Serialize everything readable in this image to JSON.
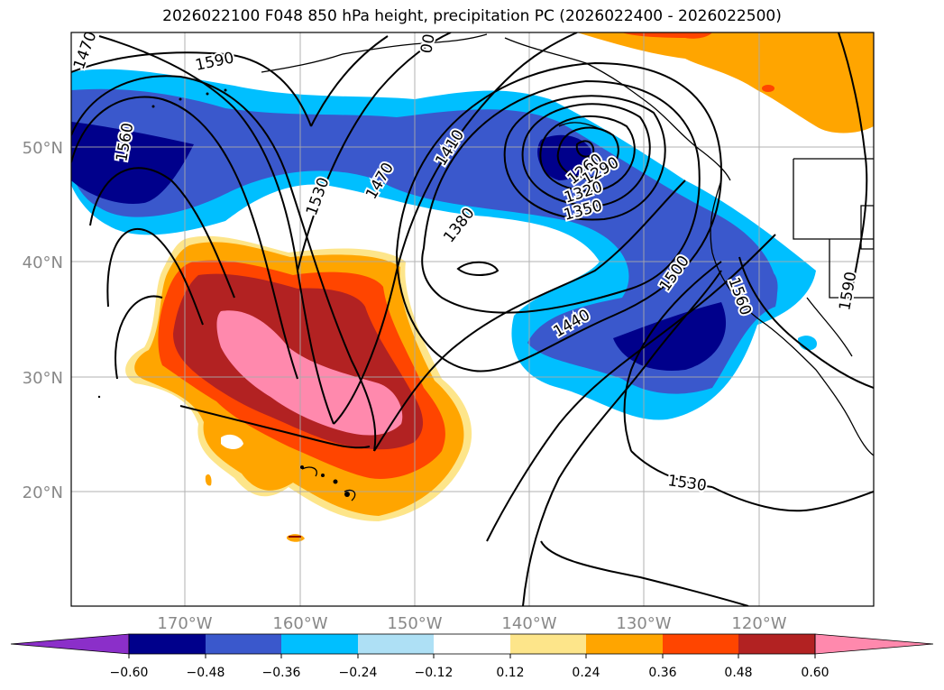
{
  "title": "2026022100 F048 850 hPa height, precipitation PC (2026022400 - 2026022500)",
  "map": {
    "lat_labels": [
      "50°N",
      "40°N",
      "30°N",
      "20°N"
    ],
    "lon_labels": [
      "170°W",
      "160°W",
      "150°W",
      "140°W",
      "130°W",
      "120°W"
    ],
    "contour_labels": [
      "1470",
      "1590",
      "1560",
      "1530",
      "1470",
      "1410",
      "1380",
      "1260",
      "1290",
      "1320",
      "1350",
      "1440",
      "1500",
      "1560",
      "1590",
      "1530",
      "00"
    ]
  },
  "colorbar": {
    "ticks": [
      "−0.60",
      "−0.48",
      "−0.36",
      "−0.24",
      "−0.12",
      "0.12",
      "0.24",
      "0.36",
      "0.48",
      "0.60"
    ],
    "colors": [
      "#8b2fc9",
      "#00008b",
      "#3a58cc",
      "#00bfff",
      "#aee0f5",
      "#ffffff",
      "#fde58a",
      "#ffa500",
      "#ff4500",
      "#b22222",
      "#ff89ad",
      "#ff89ad"
    ]
  }
}
